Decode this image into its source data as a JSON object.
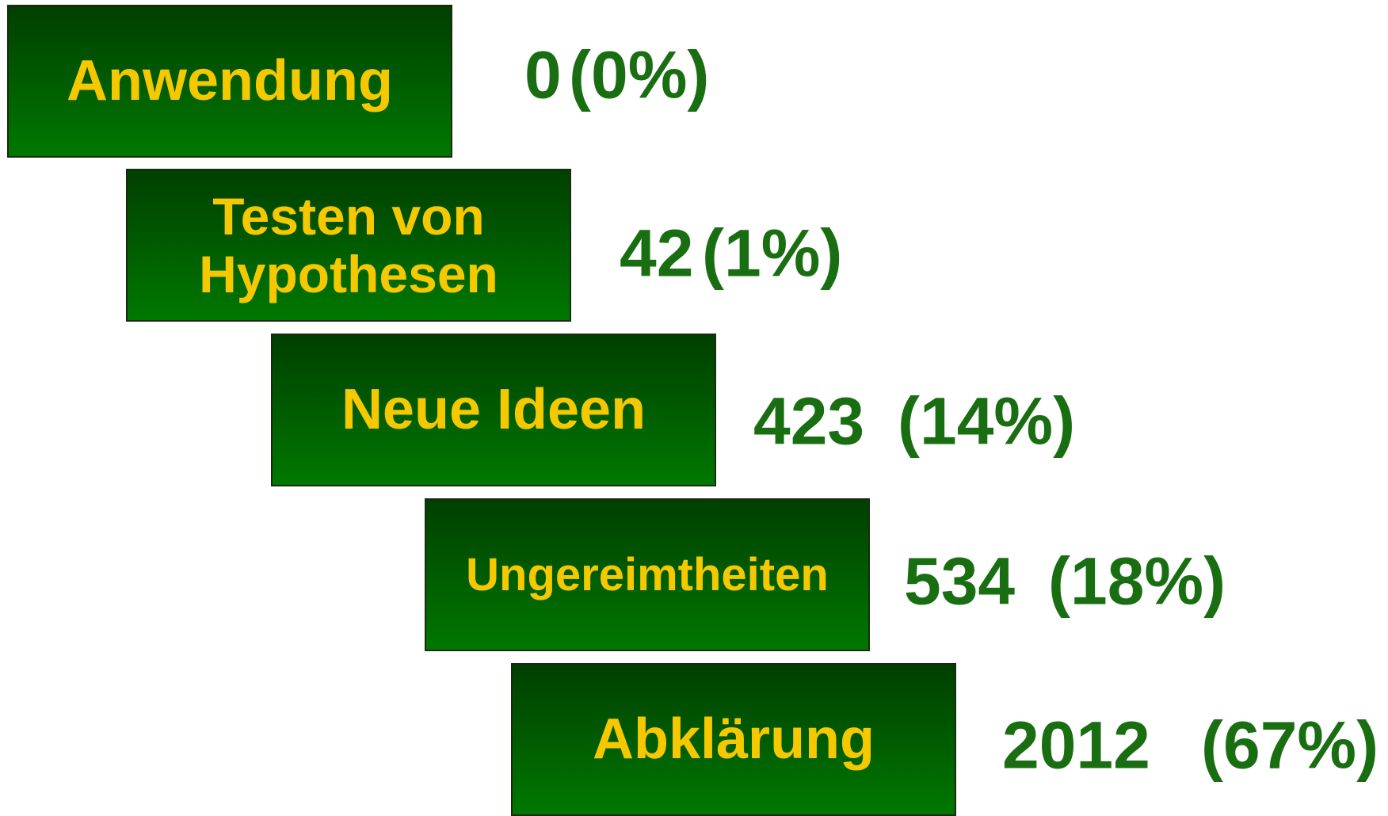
{
  "items": [
    {
      "label": "Anwendung",
      "count": 0,
      "percent": "(0%)"
    },
    {
      "label": "Testen von Hypothesen",
      "count": 42,
      "percent": "(1%)"
    },
    {
      "label": "Neue Ideen",
      "count": 423,
      "percent": "(14%)"
    },
    {
      "label": "Ungereimtheiten",
      "count": 534,
      "percent": "(18%)"
    },
    {
      "label": "Abklärung",
      "count": 2012,
      "percent": "(67%)"
    }
  ]
}
